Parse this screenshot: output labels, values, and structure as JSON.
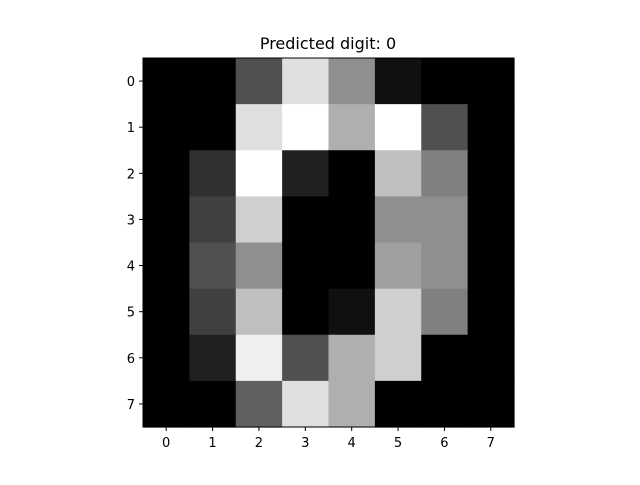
{
  "chart_data": {
    "type": "heatmap",
    "title": "Predicted digit: 0",
    "colormap": "gray",
    "vmin": 0,
    "vmax": 16,
    "x_ticks": [
      "0",
      "1",
      "2",
      "3",
      "4",
      "5",
      "6",
      "7"
    ],
    "y_ticks": [
      "0",
      "1",
      "2",
      "3",
      "4",
      "5",
      "6",
      "7"
    ],
    "grid": false,
    "values": [
      [
        0,
        0,
        5,
        14,
        9,
        1,
        0,
        0
      ],
      [
        0,
        0,
        14,
        16,
        11,
        16,
        5,
        0
      ],
      [
        0,
        3,
        16,
        2,
        0,
        12,
        8,
        0
      ],
      [
        0,
        4,
        13,
        0,
        0,
        9,
        9,
        0
      ],
      [
        0,
        5,
        9,
        0,
        0,
        10,
        9,
        0
      ],
      [
        0,
        4,
        12,
        0,
        1,
        13,
        8,
        0
      ],
      [
        0,
        2,
        15,
        5,
        11,
        13,
        0,
        0
      ],
      [
        0,
        0,
        6,
        14,
        11,
        0,
        0,
        0
      ]
    ]
  }
}
